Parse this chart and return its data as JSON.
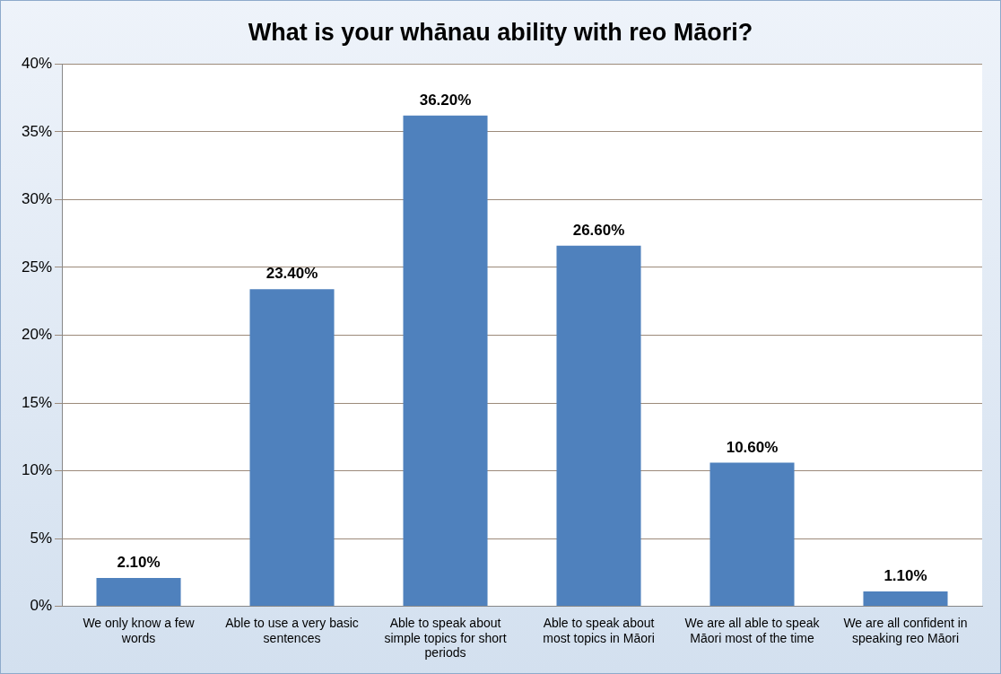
{
  "chart_data": {
    "type": "bar",
    "title": "What is your whānau ability with reo Māori?",
    "categories": [
      "We only know a few words",
      "Able to use a very basic sentences",
      "Able to speak about simple topics for short periods",
      "Able to speak about most topics in Māori",
      "We are all able to speak Māori most of the time",
      "We are all confident in speaking reo Māori"
    ],
    "values": [
      2.1,
      23.4,
      36.2,
      26.6,
      10.6,
      1.1
    ],
    "value_labels": [
      "2.10%",
      "23.40%",
      "36.20%",
      "26.60%",
      "10.60%",
      "1.10%"
    ],
    "color": "#4f81bd",
    "ylim": [
      0,
      40
    ],
    "yticks": [
      {
        "value": 0,
        "label": "0%"
      },
      {
        "value": 5,
        "label": "5%"
      },
      {
        "value": 10,
        "label": "10%"
      },
      {
        "value": 15,
        "label": "15%"
      },
      {
        "value": 20,
        "label": "20%"
      },
      {
        "value": 25,
        "label": "25%"
      },
      {
        "value": 30,
        "label": "30%"
      },
      {
        "value": 35,
        "label": "35%"
      },
      {
        "value": 40,
        "label": "40%"
      }
    ],
    "grid": "y",
    "legend": false
  }
}
